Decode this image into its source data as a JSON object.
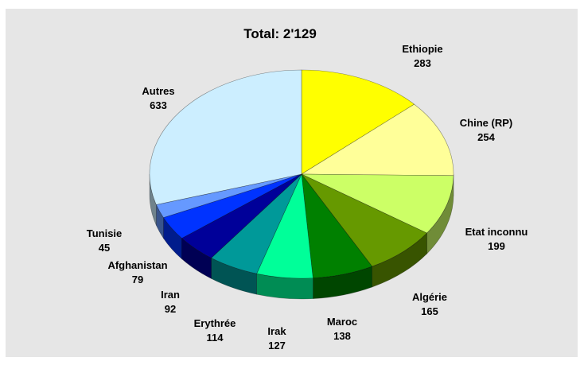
{
  "chart_data": {
    "type": "pie",
    "title": "Total: 2'129",
    "slices": [
      {
        "label": "Ethiopie",
        "value": 283,
        "color": "#ffff00"
      },
      {
        "label": "Chine (RP)",
        "value": 254,
        "color": "#ffff99"
      },
      {
        "label": "Etat inconnu",
        "value": 199,
        "color": "#ccff66"
      },
      {
        "label": "Algérie",
        "value": 165,
        "color": "#669900"
      },
      {
        "label": "Maroc",
        "value": 138,
        "color": "#008000"
      },
      {
        "label": "Irak",
        "value": 127,
        "color": "#00ff99"
      },
      {
        "label": "Erythrée",
        "value": 114,
        "color": "#009999"
      },
      {
        "label": "Iran",
        "value": 92,
        "color": "#000099"
      },
      {
        "label": "Afghanistan",
        "value": 79,
        "color": "#0033ff"
      },
      {
        "label": "Tunisie",
        "value": 45,
        "color": "#6699ff"
      },
      {
        "label": "Autres",
        "value": 633,
        "color": "#cceeff"
      }
    ],
    "start": "12 o'clock",
    "direction": "clockwise",
    "style": "3d-tilted",
    "legend": "none",
    "background": "#e6e6e6"
  }
}
